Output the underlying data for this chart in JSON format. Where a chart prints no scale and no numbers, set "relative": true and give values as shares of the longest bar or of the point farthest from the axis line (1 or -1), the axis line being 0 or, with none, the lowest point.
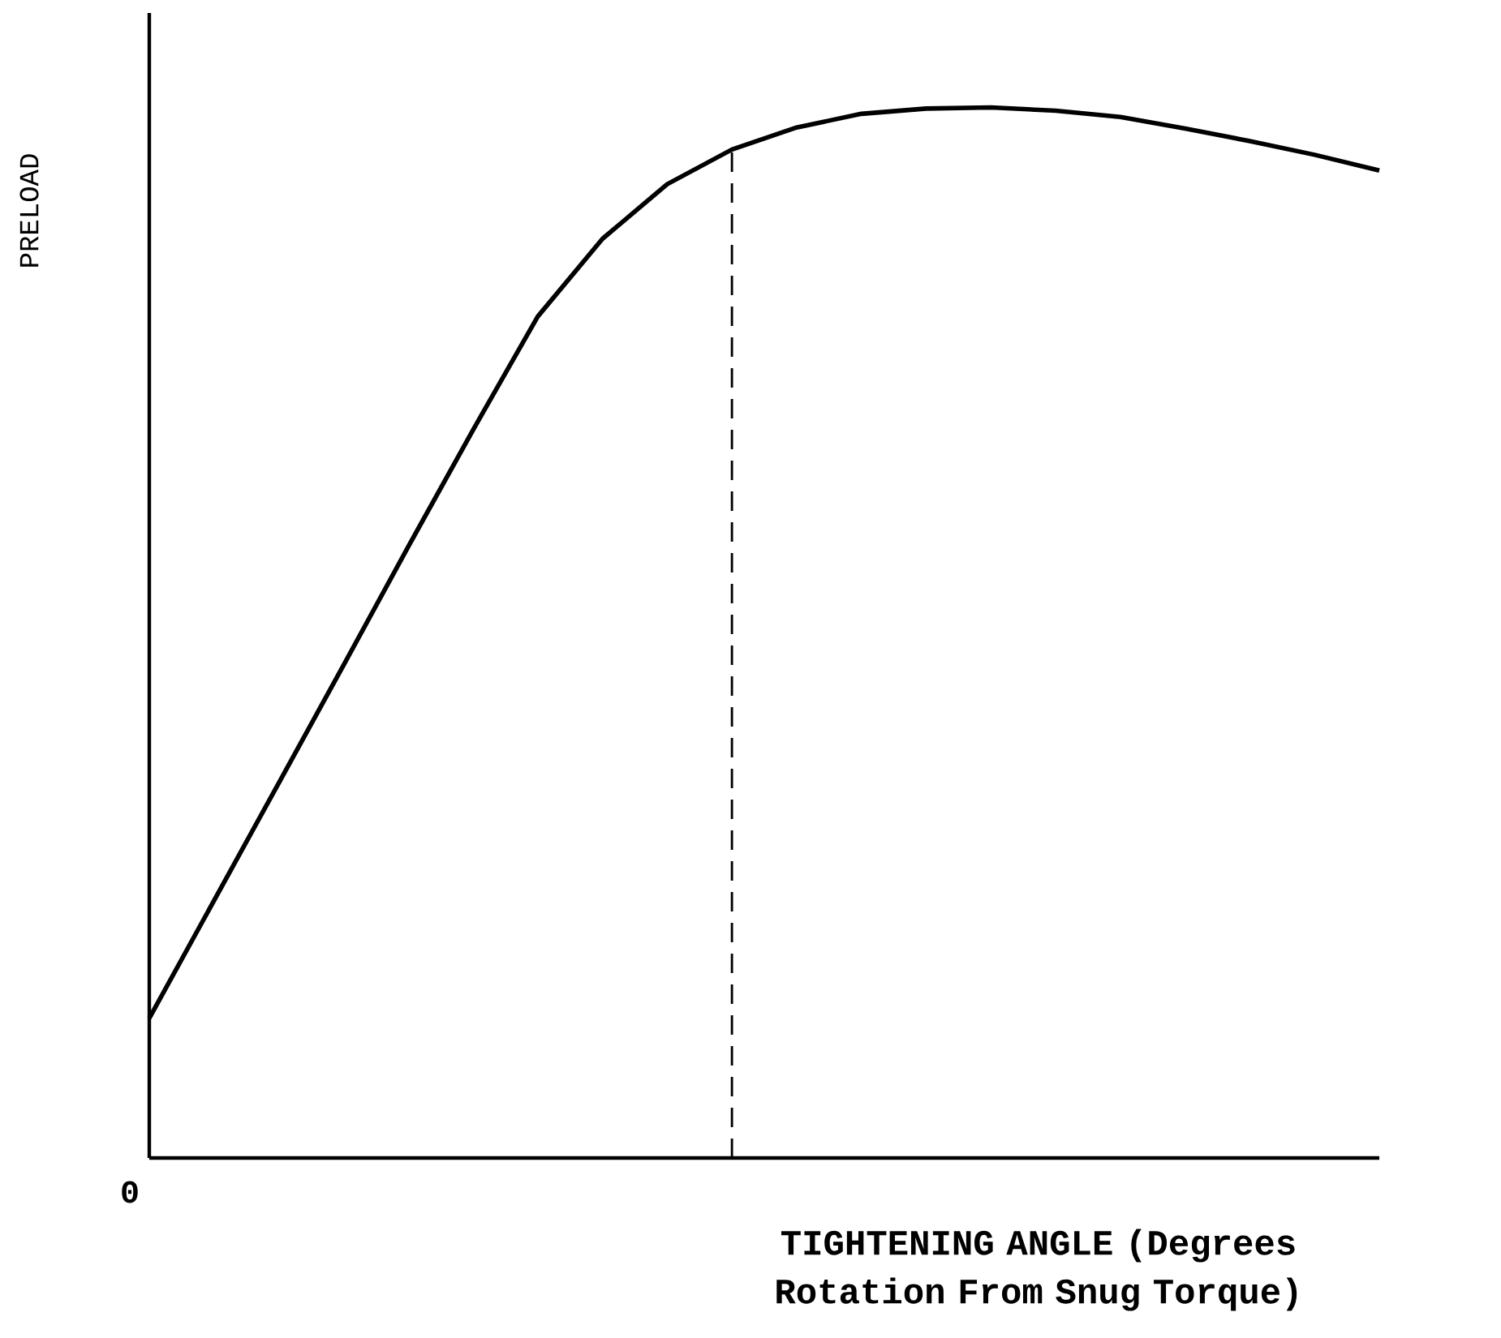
{
  "chart_data": {
    "type": "line",
    "relative": true,
    "xlabel": "TIGHTENING ANGLE (Degrees Rotation From Snug Torque)",
    "ylabel": "PRELOAD",
    "annotations": [
      "0"
    ],
    "categories": [
      null,
      null,
      null,
      null,
      null,
      null,
      null,
      null,
      null,
      null,
      null,
      null,
      null,
      null,
      null,
      null,
      null,
      null,
      null,
      null
    ],
    "values": [
      0.133,
      0.245,
      0.357,
      0.469,
      0.582,
      0.693,
      0.801,
      0.875,
      0.927,
      0.96,
      0.981,
      0.994,
      0.999,
      1.0,
      0.997,
      0.991,
      0.98,
      0.968,
      0.955,
      0.94
    ],
    "color": "#000000"
  }
}
